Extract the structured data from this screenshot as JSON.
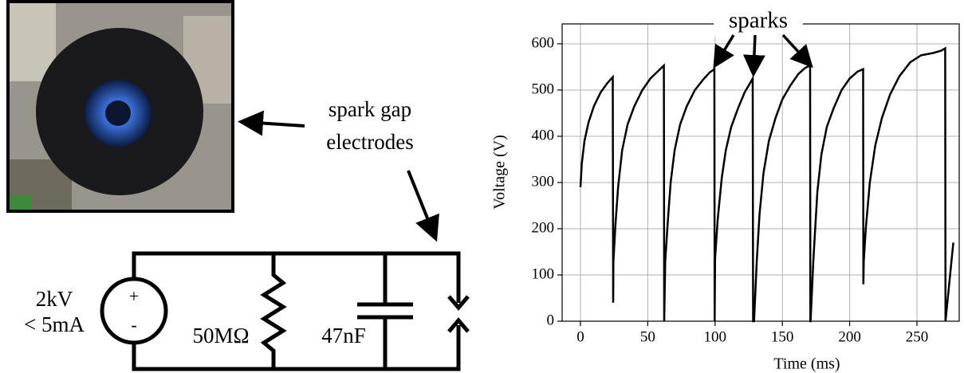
{
  "photo_annotation": [
    "spark gap",
    "electrodes"
  ],
  "circuit": {
    "source_voltage": "2kV",
    "source_current": "< 5mA",
    "plus": "+",
    "minus": "-",
    "resistor": "50MΩ",
    "capacitor": "47nF"
  },
  "chart_data": {
    "type": "line",
    "xlabel": "Time (ms)",
    "ylabel": "Voltage (V)",
    "annotation": "sparks",
    "xlim": [
      -13.6,
      281.4
    ],
    "ylim": [
      0,
      643
    ],
    "xticks": [
      0,
      50,
      100,
      150,
      200,
      250
    ],
    "yticks": [
      0,
      100,
      200,
      300,
      400,
      500,
      600
    ],
    "grid": true,
    "series": [
      {
        "color": "#000000",
        "x": [
          0,
          1,
          3,
          6,
          10,
          15,
          20,
          24,
          24.3,
          24.5,
          26,
          28,
          31,
          35,
          40,
          46,
          52,
          58,
          62,
          62.2,
          63,
          65,
          67,
          70,
          74,
          79,
          85,
          91,
          96,
          99.5,
          99.7,
          100,
          102,
          105,
          108,
          112,
          117,
          122,
          127,
          128,
          128.3,
          129,
          131,
          133,
          136,
          140,
          145,
          150,
          156,
          162,
          167,
          170.6,
          170.8,
          171,
          173,
          176,
          179,
          183,
          188,
          194,
          200,
          206,
          210,
          210.2,
          210.5,
          212,
          215,
          219,
          224,
          230,
          237,
          245,
          253,
          262,
          268,
          271,
          271.2,
          277
        ],
        "values": [
          290,
          340,
          390,
          430,
          465,
          495,
          515,
          528,
          40,
          130,
          210,
          290,
          370,
          425,
          465,
          500,
          525,
          542,
          553,
          0,
          130,
          220,
          300,
          370,
          425,
          465,
          500,
          522,
          538,
          545,
          0,
          135,
          220,
          310,
          370,
          420,
          460,
          495,
          520,
          525,
          0,
          0,
          130,
          230,
          320,
          390,
          440,
          480,
          510,
          535,
          548,
          553,
          0,
          0,
          130,
          280,
          360,
          420,
          460,
          500,
          525,
          540,
          545,
          80,
          130,
          200,
          300,
          380,
          440,
          490,
          530,
          560,
          575,
          580,
          585,
          590,
          0,
          170
        ]
      }
    ]
  }
}
